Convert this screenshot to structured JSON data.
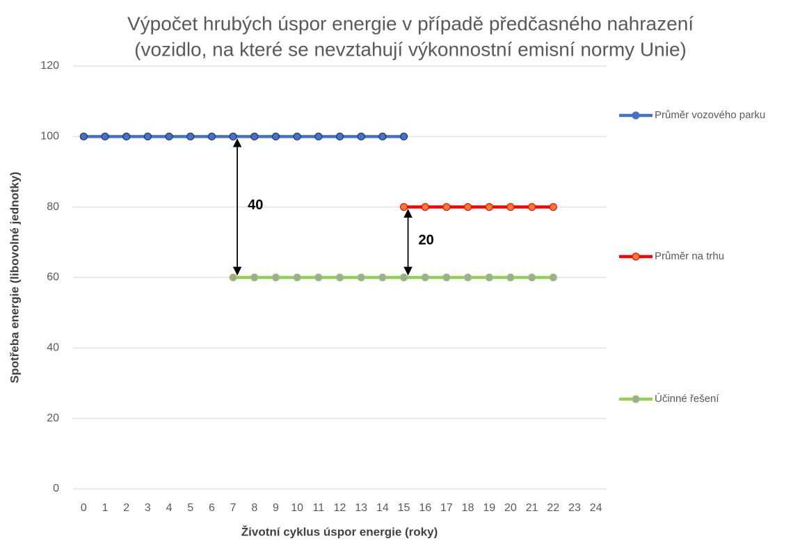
{
  "chart_data": {
    "type": "line",
    "title": [
      "Výpočet hrubých úspor energie v případě předčasného nahrazení",
      "(vozidlo, na které se nevztahují výkonnostní emisní normy Unie)"
    ],
    "x_label": "Životní cyklus úspor energie (roky)",
    "y_label": "Spotřeba energie (libovolné jednotky)",
    "categories": [
      "0",
      "1",
      "2",
      "3",
      "4",
      "5",
      "6",
      "7",
      "8",
      "9",
      "10",
      "11",
      "12",
      "13",
      "14",
      "15",
      "16",
      "17",
      "18",
      "19",
      "20",
      "21",
      "22",
      "23",
      "24"
    ],
    "series": [
      {
        "name": "Průměr vozového parku",
        "color": "#4472c4",
        "marker_color": "#4472c4",
        "values": [
          100,
          100,
          100,
          100,
          100,
          100,
          100,
          100,
          100,
          100,
          100,
          100,
          100,
          100,
          100,
          100,
          null,
          null,
          null,
          null,
          null,
          null,
          null,
          null,
          null
        ]
      },
      {
        "name": "Průměr na trhu",
        "color": "#ff0000",
        "marker_color": "#ed7d31",
        "values": [
          null,
          null,
          null,
          null,
          null,
          null,
          null,
          null,
          null,
          null,
          null,
          null,
          null,
          null,
          null,
          80,
          80,
          80,
          80,
          80,
          80,
          80,
          80,
          null,
          null
        ]
      },
      {
        "name": "Účinné řešení",
        "color": "#92d050",
        "marker_color": "#a5a5a5",
        "values": [
          null,
          null,
          null,
          null,
          null,
          null,
          null,
          60,
          60,
          60,
          60,
          60,
          60,
          60,
          60,
          60,
          60,
          60,
          60,
          60,
          60,
          60,
          60,
          null,
          null
        ]
      }
    ],
    "annotations": [
      {
        "label": 40,
        "category": "7",
        "y_from": 100,
        "y_to": 60
      },
      {
        "label": 20,
        "category": "15",
        "y_from": 80,
        "y_to": 60
      }
    ],
    "ylim": [
      0,
      120
    ],
    "yticks": [
      0,
      20,
      40,
      60,
      80,
      100,
      120
    ],
    "grid": true,
    "legend": "right"
  }
}
